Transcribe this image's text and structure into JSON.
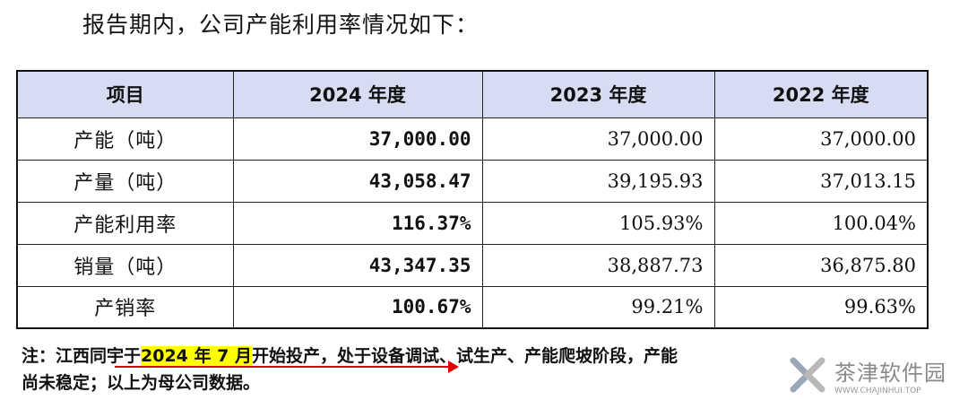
{
  "intro": "报告期内，公司产能利用率情况如下：",
  "table": {
    "headers": [
      "项目",
      "2024 年度",
      "2023 年度",
      "2022 年度"
    ],
    "rows": [
      {
        "label": "产能（吨）",
        "y2024": "37,000.00",
        "y2023": "37,000.00",
        "y2022": "37,000.00"
      },
      {
        "label": "产量（吨）",
        "y2024": "43,058.47",
        "y2023": "39,195.93",
        "y2022": "37,013.15"
      },
      {
        "label": "产能利用率",
        "y2024": "116.37%",
        "y2023": "105.93%",
        "y2022": "100.04%"
      },
      {
        "label": "销量（吨）",
        "y2024": "43,347.35",
        "y2023": "38,887.73",
        "y2022": "36,875.80"
      },
      {
        "label": "产销率",
        "y2024": "100.67%",
        "y2023": "99.21%",
        "y2022": "99.63%"
      }
    ]
  },
  "note": {
    "prefix": "注：江西同宇于",
    "highlight": "2024 年 7 月",
    "suffix": "开始投产，处于设备调试、试生产、产能爬坡阶段，产能",
    "line2": "尚未稳定；以上为母公司数据。"
  },
  "watermark": {
    "name_cn": "茶津软件园",
    "name_en": "WWW.CHAJINHUI.TOP"
  },
  "colors": {
    "header_bg": "#d7dcf3",
    "highlight": "#ffff00",
    "annotation_red": "#dd0000"
  }
}
